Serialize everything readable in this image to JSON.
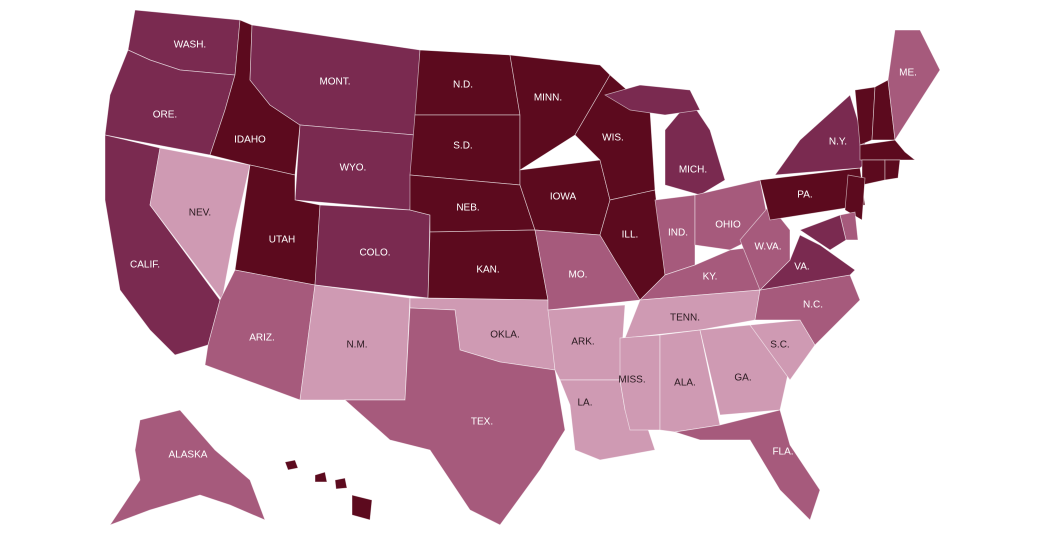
{
  "states": [
    {
      "label": "WASH.",
      "color": "#7a2a50"
    },
    {
      "label": "ORE.",
      "color": "#7a2a50"
    },
    {
      "label": "CALIF.",
      "color": "#7a2a50"
    },
    {
      "label": "NEV.",
      "color": "#cf9ab3"
    },
    {
      "label": "IDAHO",
      "color": "#5c0a1e"
    },
    {
      "label": "MONT.",
      "color": "#7a2a50"
    },
    {
      "label": "WYO.",
      "color": "#7a2a50"
    },
    {
      "label": "UTAH",
      "color": "#5c0a1e"
    },
    {
      "label": "COLO.",
      "color": "#7a2a50"
    },
    {
      "label": "ARIZ.",
      "color": "#a65a7c"
    },
    {
      "label": "N.M.",
      "color": "#cf9ab3"
    },
    {
      "label": "N.D.",
      "color": "#5c0a1e"
    },
    {
      "label": "S.D.",
      "color": "#5c0a1e"
    },
    {
      "label": "NEB.",
      "color": "#5c0a1e"
    },
    {
      "label": "KAN.",
      "color": "#5c0a1e"
    },
    {
      "label": "OKLA.",
      "color": "#cf9ab3"
    },
    {
      "label": "TEX.",
      "color": "#a65a7c"
    },
    {
      "label": "MINN.",
      "color": "#5c0a1e"
    },
    {
      "label": "IOWA",
      "color": "#5c0a1e"
    },
    {
      "label": "MO.",
      "color": "#a65a7c"
    },
    {
      "label": "ARK.",
      "color": "#cf9ab3"
    },
    {
      "label": "LA.",
      "color": "#cf9ab3"
    },
    {
      "label": "WIS.",
      "color": "#5c0a1e"
    },
    {
      "label": "ILL.",
      "color": "#5c0a1e"
    },
    {
      "label": "MICH.",
      "color": "#7a2a50"
    },
    {
      "label": "IND.",
      "color": "#a65a7c"
    },
    {
      "label": "OHIO",
      "color": "#a65a7c"
    },
    {
      "label": "KY.",
      "color": "#a65a7c"
    },
    {
      "label": "TENN.",
      "color": "#cf9ab3"
    },
    {
      "label": "MISS.",
      "color": "#cf9ab3"
    },
    {
      "label": "ALA.",
      "color": "#cf9ab3"
    },
    {
      "label": "GA.",
      "color": "#cf9ab3"
    },
    {
      "label": "FLA.",
      "color": "#a65a7c"
    },
    {
      "label": "S.C.",
      "color": "#cf9ab3"
    },
    {
      "label": "N.C.",
      "color": "#a65a7c"
    },
    {
      "label": "VA.",
      "color": "#7a2a50"
    },
    {
      "label": "W.VA.",
      "color": "#a65a7c"
    },
    {
      "label": "PA.",
      "color": "#5c0a1e"
    },
    {
      "label": "N.Y.",
      "color": "#7a2a50"
    },
    {
      "label": null,
      "color": "#5c0a1e"
    },
    {
      "label": null,
      "color": "#5c0a1e"
    },
    {
      "label": "ME.",
      "color": "#a65a7c"
    },
    {
      "label": null,
      "color": "#5c0a1e"
    },
    {
      "label": null,
      "color": "#5c0a1e"
    },
    {
      "label": null,
      "color": "#5c0a1e"
    },
    {
      "label": null,
      "color": "#5c0a1e"
    },
    {
      "label": null,
      "color": "#a65a7c"
    },
    {
      "label": null,
      "color": "#7a2a50"
    },
    {
      "label": "ALASKA",
      "color": "#a65a7c"
    },
    {
      "label": null,
      "color": "#5c0a1e"
    }
  ]
}
